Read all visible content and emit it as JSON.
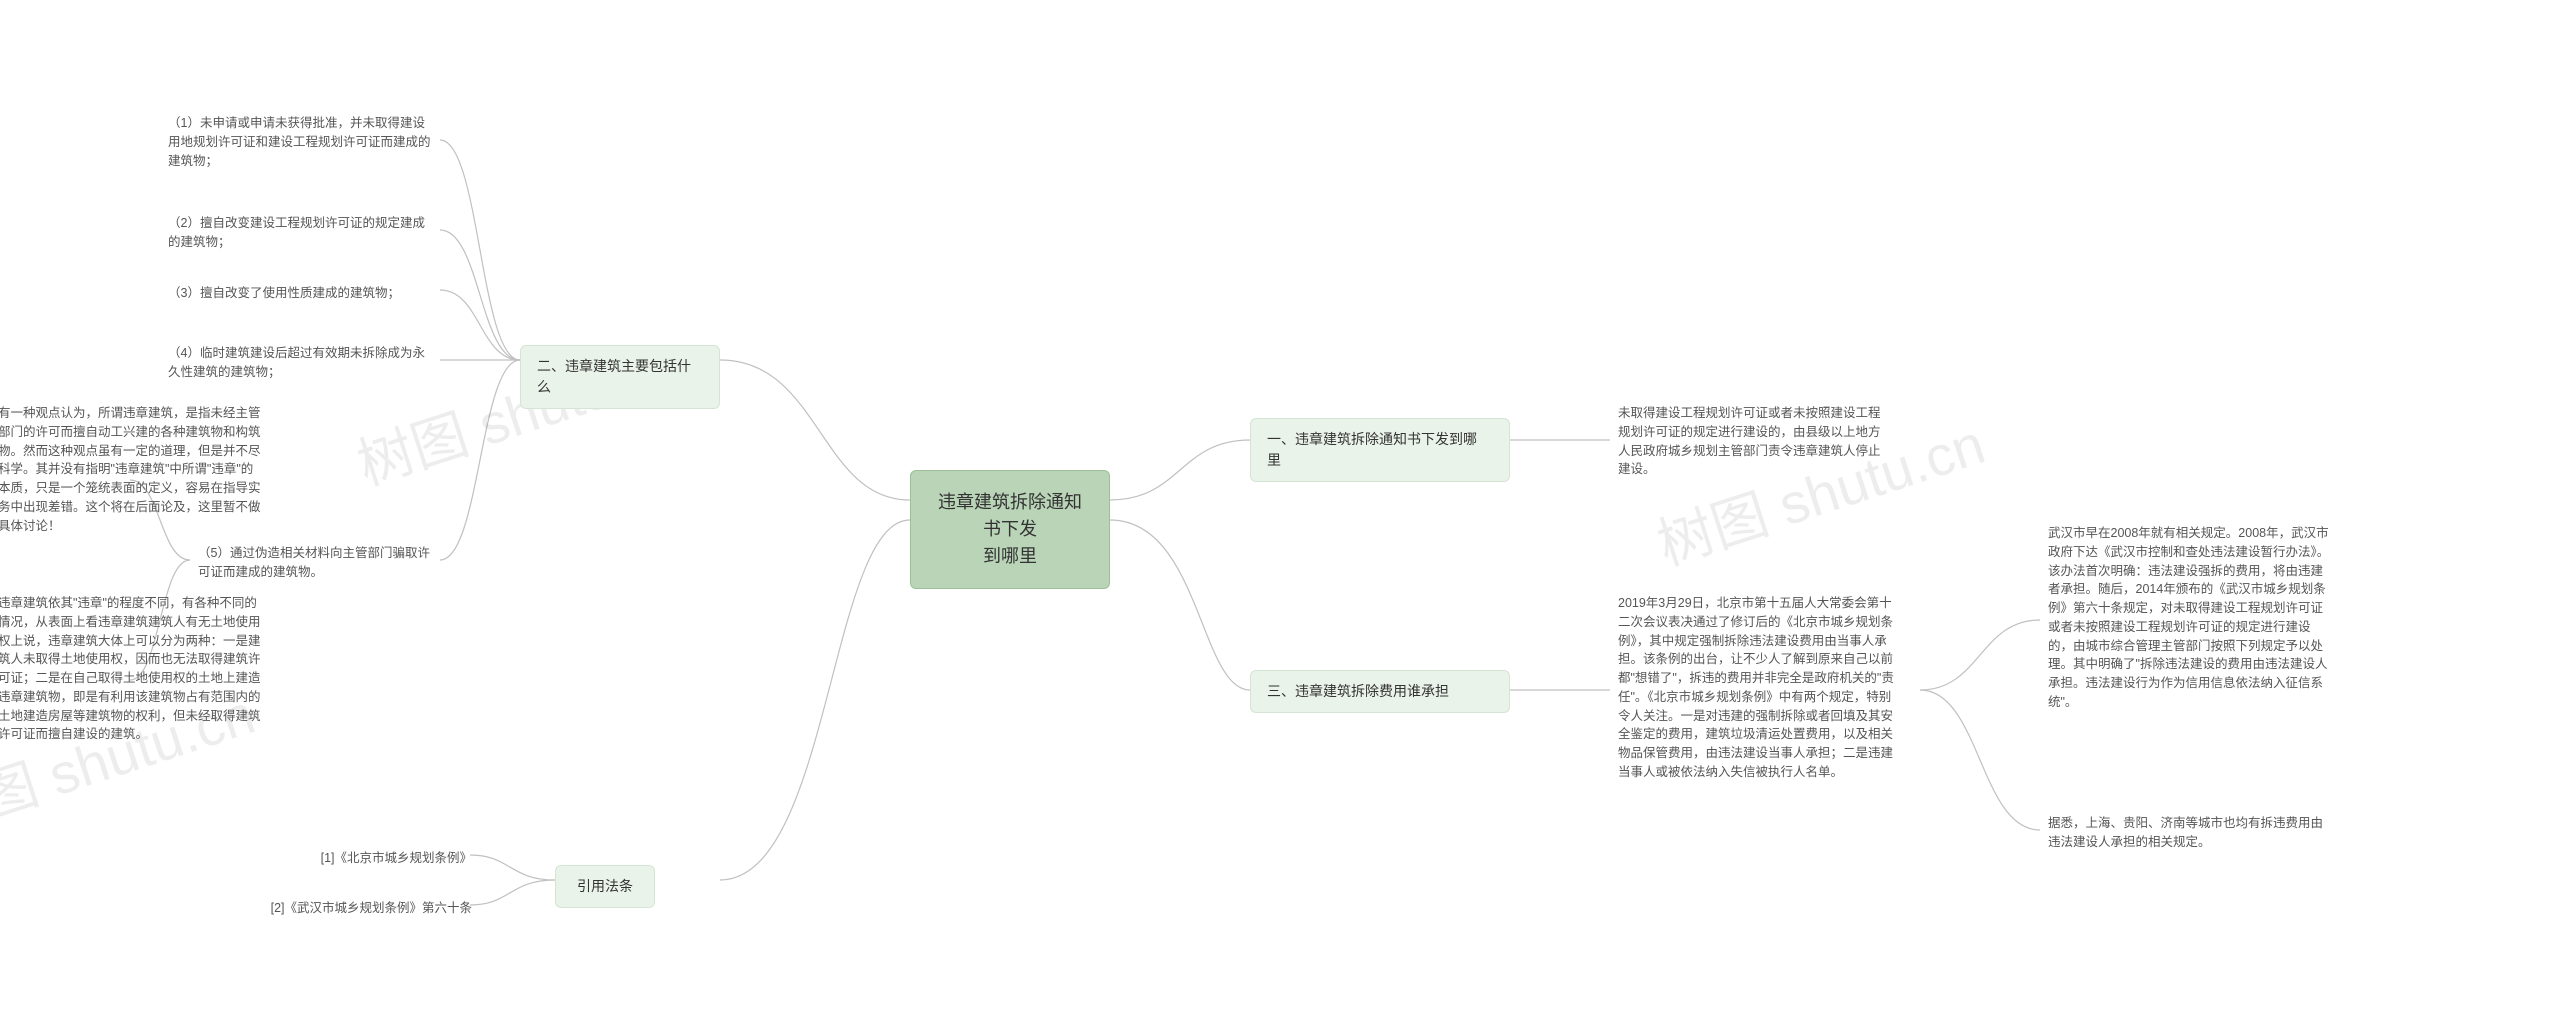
{
  "root": {
    "label": "违章建筑拆除通知书下发\n到哪里"
  },
  "branches": {
    "b1": {
      "label": "一、违章建筑拆除通知书下发到哪\n里"
    },
    "b2": {
      "label": "二、违章建筑主要包括什么"
    },
    "b3": {
      "label": "三、违章建筑拆除费用谁承担"
    },
    "b4": {
      "label": "引用法条"
    }
  },
  "leaves": {
    "b1_1": "未取得建设工程规划许可证或者未按照建设工程规划许可证的规定进行建设的，由县级以上地方人民政府城乡规划主管部门责令违章建筑人停止建设。",
    "b2_1": "（1）未申请或申请未获得批准，并未取得建设用地规划许可证和建设工程规划许可证而建成的建筑物；",
    "b2_2": "（2）擅自改变建设工程规划许可证的规定建成的建筑物；",
    "b2_3": "（3）擅自改变了使用性质建成的建筑物；",
    "b2_4": "（4）临时建筑建设后超过有效期未拆除成为永久性建筑的建筑物；",
    "b2_5": "（5）通过伪造相关材料向主管部门骗取许可证而建成的建筑物。",
    "b2_5a": "有一种观点认为，所谓违章建筑，是指未经主管部门的许可而擅自动工兴建的各种建筑物和构筑物。然而这种观点虽有一定的道理，但是并不尽科学。其并没有指明\"违章建筑\"中所谓\"违章\"的本质，只是一个笼统表面的定义，容易在指导实务中出现差错。这个将在后面论及，这里暂不做具体讨论！",
    "b2_5b": "违章建筑依其\"违章\"的程度不同，有各种不同的情况，从表面上看违章建筑建筑人有无土地使用权上说，违章建筑大体上可以分为两种：一是建筑人未取得土地使用权，因而也无法取得建筑许可证；二是在自己取得土地使用权的土地上建造违章建筑物，即是有利用该建筑物占有范围内的土地建造房屋等建筑物的权利，但未经取得建筑许可证而擅自建设的建筑。",
    "b3_1": "2019年3月29日，北京市第十五届人大常委会第十二次会议表决通过了修订后的《北京市城乡规划条例》，其中规定强制拆除违法建设费用由当事人承担。该条例的出台，让不少人了解到原来自己以前都\"想错了\"，拆违的费用并非完全是政府机关的\"责任\"。《北京市城乡规划条例》中有两个规定，特别令人关注。一是对违建的强制拆除或者回填及其安全鉴定的费用，建筑垃圾清运处置费用，以及相关物品保管费用，由违法建设当事人承担；二是违建当事人或被依法纳入失信被执行人名单。",
    "b3_1a": "武汉市早在2008年就有相关规定。2008年，武汉市政府下达《武汉市控制和查处违法建设暂行办法》。该办法首次明确：违法建设强拆的费用，将由违建者承担。随后，2014年颁布的《武汉市城乡规划条例》第六十条规定，对未取得建设工程规划许可证或者未按照建设工程规划许可证的规定进行建设的，由城市综合管理主管部门按照下列规定予以处理。其中明确了\"拆除违法建设的费用由违法建设人承担。违法建设行为作为信用信息依法纳入征信系统\"。",
    "b3_1b": "据悉，上海、贵阳、济南等城市也均有拆违费用由违法建设人承担的相关规定。",
    "b4_1": "[1]《北京市城乡规划条例》",
    "b4_2": "[2]《武汉市城乡规划条例》第六十条"
  },
  "style": {
    "root_bg": "#b9d4b7",
    "branch_bg": "#eaf3e9",
    "connector_color": "#c0c0c0",
    "text_color": "#333333",
    "leaf_color": "#555555",
    "bg": "#ffffff",
    "root_fontsize": 18,
    "branch_fontsize": 14,
    "leaf_fontsize": 12.5
  },
  "watermark": "树图 shutu.cn"
}
